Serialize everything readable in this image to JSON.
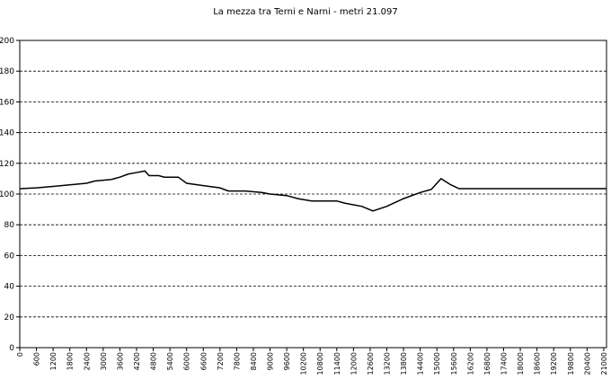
{
  "chart_data": {
    "type": "line",
    "title": "La mezza tra Terni e Narni - metri 21.097",
    "series": [
      {
        "name": null,
        "color": "#000000",
        "x": [
          0,
          600,
          1200,
          1800,
          2400,
          2700,
          3000,
          3300,
          3600,
          3900,
          4200,
          4500,
          4650,
          5000,
          5200,
          5700,
          6000,
          6600,
          7200,
          7500,
          8100,
          8700,
          9000,
          9600,
          10000,
          10500,
          11400,
          11700,
          12300,
          12700,
          13200,
          13800,
          14400,
          14800,
          15150,
          15500,
          15800,
          16000,
          21097
        ],
        "values": [
          103.5,
          104,
          105,
          106,
          107,
          108.5,
          109,
          109.5,
          111,
          113,
          114,
          115,
          112,
          112,
          111,
          111,
          107,
          105.5,
          104,
          102,
          102,
          101,
          100,
          99,
          97,
          95.5,
          95.5,
          94,
          92,
          89,
          92,
          97,
          101,
          103,
          110,
          106,
          103.5,
          103.5,
          103.5
        ]
      }
    ],
    "xlim": [
      0,
      21100
    ],
    "ylim": [
      0,
      200
    ],
    "xticks": [
      0,
      600,
      1200,
      1800,
      2400,
      3000,
      3600,
      4200,
      4800,
      5400,
      6000,
      6600,
      7200,
      7800,
      8400,
      9000,
      9600,
      10200,
      10800,
      11400,
      12000,
      12600,
      13200,
      13800,
      14400,
      15000,
      15600,
      16200,
      16800,
      17400,
      18000,
      18600,
      19200,
      19800,
      20400,
      21000
    ],
    "yticks": [
      0,
      20,
      40,
      60,
      80,
      100,
      120,
      140,
      160,
      180,
      200
    ],
    "grid": true
  }
}
